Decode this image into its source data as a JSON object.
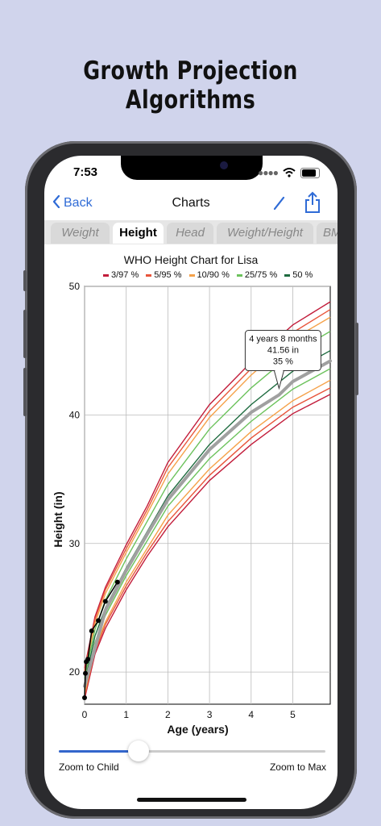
{
  "headline": "Growth Projection Algorithms",
  "status_bar": {
    "time": "7:53"
  },
  "nav": {
    "back_label": "Back",
    "title": "Charts"
  },
  "tabs": [
    {
      "label": "Weight",
      "active": false
    },
    {
      "label": "Height",
      "active": true
    },
    {
      "label": "Head",
      "active": false
    },
    {
      "label": "Weight/Height",
      "active": false
    },
    {
      "label": "BM",
      "active": false
    }
  ],
  "slider": {
    "value": 0.3,
    "left_label": "Zoom to Child",
    "right_label": "Zoom to Max"
  },
  "colors": {
    "accent": "#2f6bd6",
    "p3_97": "#c21d3b",
    "p5_95": "#e8553b",
    "p10_90": "#f5a24a",
    "p25_75": "#6cc25c",
    "p50": "#1e6b3f",
    "projection": "#a0a0a0"
  },
  "chart_data": {
    "type": "line",
    "title": "WHO Height Chart for Lisa",
    "xlabel": "Age (years)",
    "ylabel": "Height (in)",
    "xlim": [
      0,
      5.9
    ],
    "ylim": [
      17.5,
      50
    ],
    "xticks": [
      0,
      1,
      2,
      3,
      4,
      5
    ],
    "yticks": [
      20,
      30,
      40,
      50
    ],
    "grid": true,
    "legend_position": "top",
    "legend": [
      "3/97 %",
      "5/95 %",
      "10/90 %",
      "25/75 %",
      "50 %"
    ],
    "percentile_heights_at_age": {
      "x": [
        0,
        0.25,
        0.5,
        1,
        1.5,
        2,
        3,
        4,
        5,
        5.9
      ],
      "series": [
        {
          "name": "3/97 %",
          "lower": [
            17.9,
            21.4,
            23.4,
            26.4,
            29.0,
            31.3,
            34.9,
            37.7,
            40.1,
            41.6
          ],
          "upper": [
            20.3,
            24.3,
            26.6,
            29.9,
            32.9,
            36.3,
            40.8,
            44.1,
            47.0,
            48.8
          ]
        },
        {
          "name": "5/95 %",
          "lower": [
            18.1,
            21.6,
            23.7,
            26.7,
            29.3,
            31.7,
            35.3,
            38.2,
            40.6,
            42.1
          ],
          "upper": [
            20.1,
            24.1,
            26.4,
            29.6,
            32.6,
            35.9,
            40.3,
            43.6,
            46.4,
            48.2
          ]
        },
        {
          "name": "10/90 %",
          "lower": [
            18.3,
            21.8,
            23.9,
            27.0,
            29.6,
            32.2,
            35.8,
            38.7,
            41.1,
            42.7
          ],
          "upper": [
            19.9,
            23.8,
            26.1,
            29.3,
            32.3,
            35.4,
            39.8,
            43.1,
            45.9,
            47.6
          ]
        },
        {
          "name": "25/75 %",
          "lower": [
            18.7,
            22.3,
            24.4,
            27.5,
            30.2,
            32.9,
            36.6,
            39.5,
            42.0,
            43.6
          ],
          "upper": [
            19.5,
            23.3,
            25.6,
            28.8,
            31.7,
            34.6,
            38.9,
            42.1,
            44.8,
            46.5
          ]
        },
        {
          "name": "50 %",
          "line": [
            19.1,
            22.8,
            25.0,
            28.1,
            30.9,
            33.7,
            37.7,
            40.8,
            43.4,
            45.0
          ]
        }
      ]
    },
    "projection": {
      "x": [
        0,
        0.5,
        1,
        1.5,
        2,
        3,
        4,
        4.67,
        5,
        5.9
      ],
      "y": [
        18.9,
        24.8,
        27.9,
        30.7,
        33.4,
        37.3,
        40.2,
        41.56,
        42.6,
        44.2
      ]
    },
    "child_measurements": {
      "x": [
        0,
        0.02,
        0.04,
        0.08,
        0.17,
        0.33,
        0.5,
        0.79
      ],
      "y": [
        18.0,
        19.9,
        20.8,
        21.0,
        23.2,
        24.0,
        25.5,
        27.0
      ]
    },
    "tooltip": {
      "x": 4.67,
      "y": 41.56,
      "lines": [
        "4 years 8 months",
        "41.56 in",
        "35 %"
      ]
    }
  }
}
